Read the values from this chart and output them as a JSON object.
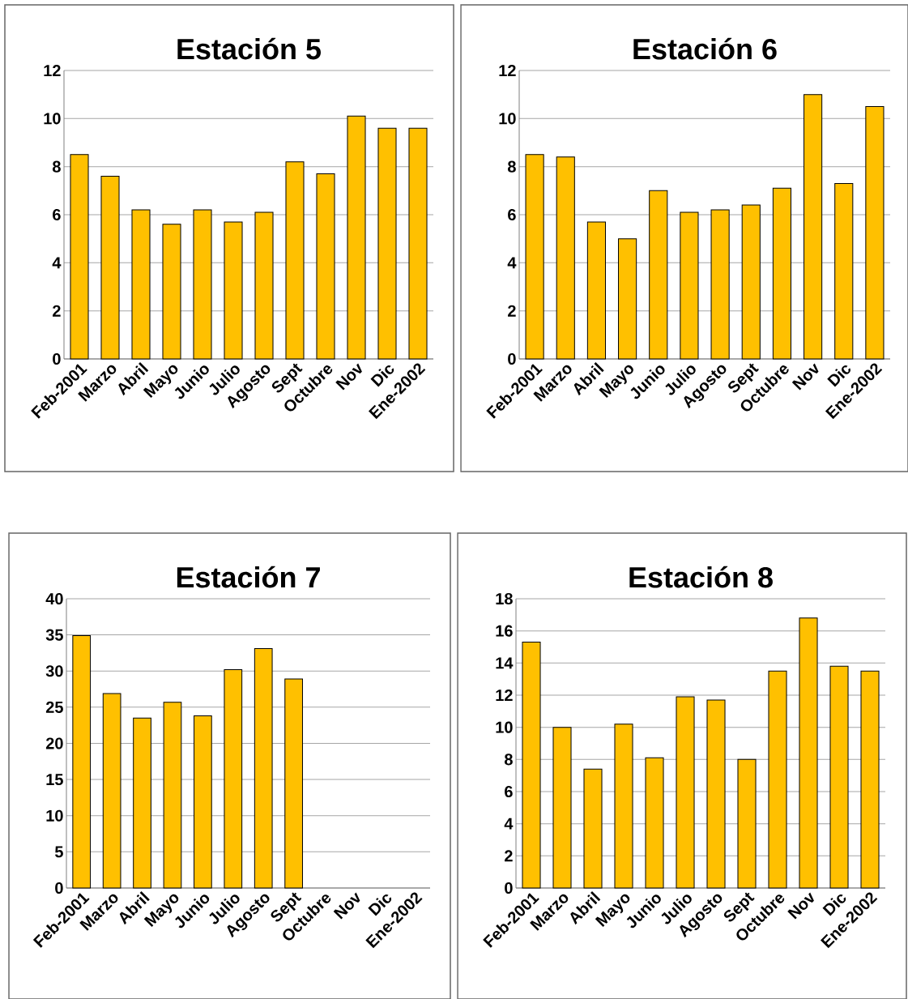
{
  "chart_data": [
    {
      "type": "bar",
      "title": "Estación 5",
      "categories": [
        "Feb-2001",
        "Marzo",
        "Abril",
        "Mayo",
        "Junio",
        "Julio",
        "Agosto",
        "Sept",
        "Octubre",
        "Nov",
        "Dic",
        "Ene-2002"
      ],
      "values": [
        8.5,
        7.6,
        6.2,
        5.6,
        6.2,
        5.7,
        6.1,
        8.2,
        7.7,
        10.1,
        9.6,
        9.6
      ],
      "color": "#ffc000",
      "ylim": [
        0,
        12
      ],
      "yticks": [
        0,
        2,
        4,
        6,
        8,
        10,
        12
      ],
      "grid": "y"
    },
    {
      "type": "bar",
      "title": "Estación 6",
      "categories": [
        "Feb-2001",
        "Marzo",
        "Abril",
        "Mayo",
        "Junio",
        "Julio",
        "Agosto",
        "Sept",
        "Octubre",
        "Nov",
        "Dic",
        "Ene-2002"
      ],
      "values": [
        8.5,
        8.4,
        5.7,
        5.0,
        7.0,
        6.1,
        6.2,
        6.4,
        7.1,
        11.0,
        7.3,
        10.5
      ],
      "color": "#ffc000",
      "ylim": [
        0,
        12
      ],
      "yticks": [
        0,
        2,
        4,
        6,
        8,
        10,
        12
      ],
      "grid": "y"
    },
    {
      "type": "bar",
      "title": "Estación 7",
      "categories": [
        "Feb-2001",
        "Marzo",
        "Abril",
        "Mayo",
        "Junio",
        "Julio",
        "Agosto",
        "Sept",
        "Octubre",
        "Nov",
        "Dic",
        "Ene-2002"
      ],
      "values": [
        34.9,
        26.9,
        23.5,
        25.7,
        23.8,
        30.2,
        33.1,
        28.9,
        null,
        null,
        null,
        null
      ],
      "color": "#ffc000",
      "ylim": [
        0,
        40
      ],
      "yticks": [
        0,
        5,
        10,
        15,
        20,
        25,
        30,
        35,
        40
      ],
      "grid": "y"
    },
    {
      "type": "bar",
      "title": "Estación 8",
      "categories": [
        "Feb-2001",
        "Marzo",
        "Abril",
        "Mayo",
        "Junio",
        "Julio",
        "Agosto",
        "Sept",
        "Octubre",
        "Nov",
        "Dic",
        "Ene-2002"
      ],
      "values": [
        15.3,
        10.0,
        7.4,
        10.2,
        8.1,
        11.9,
        11.7,
        8.0,
        13.5,
        16.8,
        13.8,
        13.5
      ],
      "color": "#ffc000",
      "ylim": [
        0,
        18
      ],
      "yticks": [
        0,
        2,
        4,
        6,
        8,
        10,
        12,
        14,
        16,
        18
      ],
      "grid": "y"
    }
  ]
}
